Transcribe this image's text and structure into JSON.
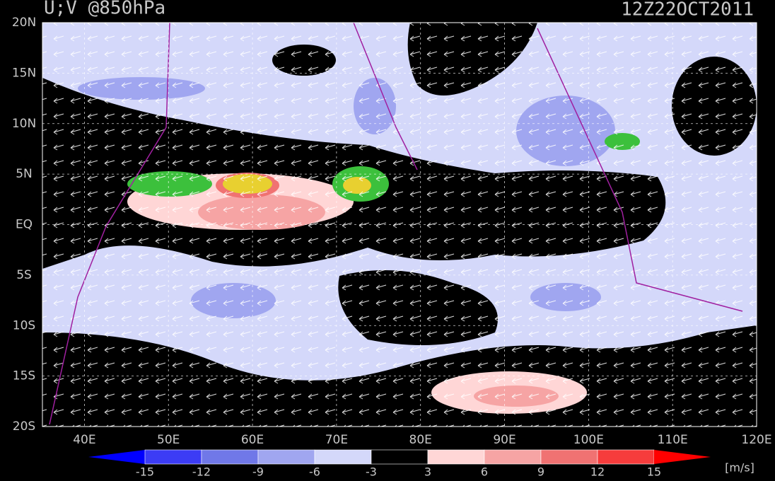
{
  "map": {
    "title": "U;V @850hPa",
    "time": "12Z22OCT2011",
    "xlim": [
      35,
      120
    ],
    "ylim": [
      -20,
      20
    ],
    "xticks": [
      {
        "value": 40,
        "label": "40E"
      },
      {
        "value": 50,
        "label": "50E"
      },
      {
        "value": 60,
        "label": "60E"
      },
      {
        "value": 70,
        "label": "70E"
      },
      {
        "value": 80,
        "label": "80E"
      },
      {
        "value": 90,
        "label": "90E"
      },
      {
        "value": 100,
        "label": "100E"
      },
      {
        "value": 110,
        "label": "110E"
      },
      {
        "value": 120,
        "label": "120E"
      }
    ],
    "yticks": [
      {
        "value": 20,
        "label": "20N"
      },
      {
        "value": 15,
        "label": "15N"
      },
      {
        "value": 10,
        "label": "10N"
      },
      {
        "value": 5,
        "label": "5N"
      },
      {
        "value": 0,
        "label": "EQ"
      },
      {
        "value": -5,
        "label": "5S"
      },
      {
        "value": -10,
        "label": "10S"
      },
      {
        "value": -15,
        "label": "15S"
      },
      {
        "value": -20,
        "label": "20S"
      }
    ],
    "grid": true,
    "colorbar": {
      "ticks": [
        -15,
        -12,
        -9,
        -6,
        -3,
        3,
        6,
        9,
        12,
        15
      ],
      "colors": [
        "#0000ff",
        "#3c3cf5",
        "#7078e8",
        "#a0a6f0",
        "#d4d8fa",
        "#000000",
        "#ffd6d6",
        "#f6a4a4",
        "#f07272",
        "#f63c3c",
        "#ff0000"
      ],
      "unit": "[m/s]"
    }
  }
}
